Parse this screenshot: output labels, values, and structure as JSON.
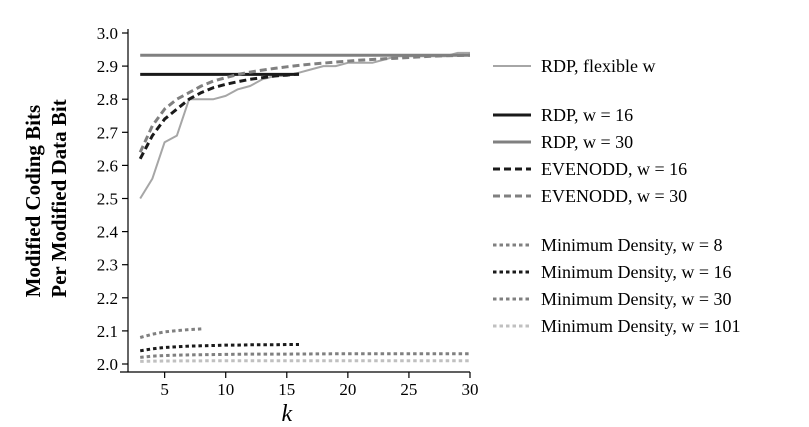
{
  "chart_data": {
    "type": "line",
    "title": "",
    "xlabel": "k",
    "ylabel_lines": [
      "Modified Coding Bits",
      "Per Modified Data Bit"
    ],
    "xlim": [
      2,
      30
    ],
    "ylim": [
      2.0,
      3.0
    ],
    "x_ticks": [
      5,
      10,
      15,
      20,
      25,
      30
    ],
    "y_ticks": [
      2.0,
      2.1,
      2.2,
      2.3,
      2.4,
      2.5,
      2.6,
      2.7,
      2.8,
      2.9,
      3.0
    ],
    "x_tick_labels": [
      "5",
      "10",
      "15",
      "20",
      "25",
      "30"
    ],
    "y_tick_labels": [
      "2.0",
      "2.1",
      "2.2",
      "2.3",
      "2.4",
      "2.5",
      "2.6",
      "2.7",
      "2.8",
      "2.9",
      "3.0"
    ],
    "grid": false,
    "legend_position": "right",
    "series": [
      {
        "name": "RDP, flexible w",
        "color": "#a6a6a6",
        "style": "solid",
        "width": 2,
        "x": [
          3,
          4,
          5,
          6,
          7,
          8,
          9,
          10,
          11,
          12,
          13,
          14,
          15,
          16,
          17,
          18,
          19,
          20,
          21,
          22,
          23,
          24,
          25,
          26,
          27,
          28,
          29,
          30
        ],
        "y": [
          2.5,
          2.56,
          2.67,
          2.69,
          2.8,
          2.8,
          2.8,
          2.81,
          2.83,
          2.84,
          2.86,
          2.87,
          2.87,
          2.88,
          2.89,
          2.9,
          2.9,
          2.91,
          2.91,
          2.91,
          2.92,
          2.93,
          2.93,
          2.93,
          2.93,
          2.93,
          2.94,
          2.94
        ]
      },
      {
        "name": "RDP, w = 16",
        "color": "#1a1a1a",
        "style": "solid",
        "width": 3,
        "x": [
          3,
          16
        ],
        "y": [
          2.875,
          2.875
        ]
      },
      {
        "name": "RDP, w = 30",
        "color": "#808080",
        "style": "solid",
        "width": 3,
        "x": [
          3,
          30
        ],
        "y": [
          2.933,
          2.933
        ]
      },
      {
        "name": "EVENODD, w = 16",
        "color": "#1a1a1a",
        "style": "dash",
        "width": 3,
        "x": [
          3,
          4,
          5,
          6,
          7,
          8,
          9,
          10,
          11,
          12,
          13,
          14,
          15,
          16
        ],
        "y": [
          2.62,
          2.69,
          2.74,
          2.77,
          2.8,
          2.82,
          2.835,
          2.845,
          2.853,
          2.86,
          2.865,
          2.87,
          2.873,
          2.876
        ]
      },
      {
        "name": "EVENODD, w = 30",
        "color": "#808080",
        "style": "dash",
        "width": 3,
        "x": [
          3,
          4,
          5,
          6,
          7,
          8,
          9,
          10,
          11,
          12,
          13,
          14,
          15,
          16,
          17,
          18,
          19,
          20,
          21,
          22,
          23,
          24,
          25,
          26,
          27,
          28,
          29,
          30
        ],
        "y": [
          2.64,
          2.72,
          2.77,
          2.8,
          2.82,
          2.84,
          2.855,
          2.865,
          2.875,
          2.882,
          2.888,
          2.893,
          2.898,
          2.902,
          2.906,
          2.909,
          2.912,
          2.915,
          2.918,
          2.92,
          2.922,
          2.924,
          2.926,
          2.928,
          2.93,
          2.931,
          2.932,
          2.933
        ]
      },
      {
        "name": "Minimum Density, w = 8",
        "color": "#808080",
        "style": "dot",
        "width": 3,
        "x": [
          3,
          4,
          5,
          6,
          7,
          8
        ],
        "y": [
          2.08,
          2.09,
          2.097,
          2.101,
          2.104,
          2.106
        ]
      },
      {
        "name": "Minimum Density, w = 16",
        "color": "#1a1a1a",
        "style": "dot",
        "width": 3,
        "x": [
          3,
          4,
          5,
          6,
          7,
          8,
          9,
          10,
          11,
          12,
          13,
          14,
          15,
          16
        ],
        "y": [
          2.04,
          2.046,
          2.05,
          2.052,
          2.054,
          2.055,
          2.056,
          2.057,
          2.057,
          2.058,
          2.058,
          2.058,
          2.059,
          2.059
        ]
      },
      {
        "name": "Minimum Density, w = 30",
        "color": "#808080",
        "style": "dot",
        "width": 3,
        "x": [
          3,
          4,
          6,
          8,
          10,
          12,
          15,
          20,
          25,
          30
        ],
        "y": [
          2.02,
          2.024,
          2.027,
          2.028,
          2.029,
          2.03,
          2.03,
          2.031,
          2.031,
          2.031
        ]
      },
      {
        "name": "Minimum Density, w = 101",
        "color": "#c0c0c0",
        "style": "dot",
        "width": 3,
        "x": [
          3,
          5,
          10,
          15,
          20,
          25,
          30
        ],
        "y": [
          2.008,
          2.009,
          2.01,
          2.01,
          2.01,
          2.01,
          2.01
        ]
      }
    ],
    "legend_groups": [
      [
        0
      ],
      [
        1,
        2,
        3,
        4
      ],
      [
        5,
        6,
        7,
        8
      ]
    ]
  }
}
